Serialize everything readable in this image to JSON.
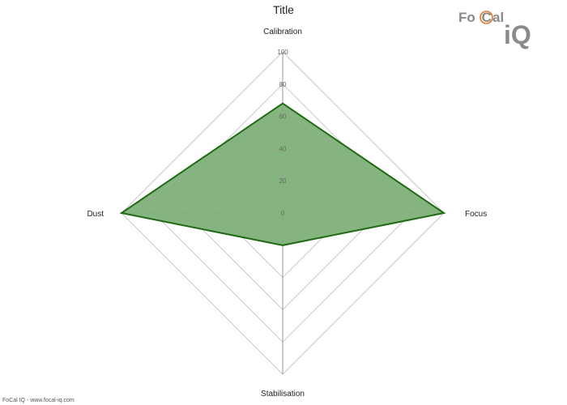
{
  "header": {
    "title": "Title"
  },
  "footer": {
    "credit": "FoCal IQ - www.focal-iq.com"
  },
  "logo": {
    "text_fo": "Fo",
    "text_c": "C",
    "text_al": "al",
    "text_iq": "iQ"
  },
  "colors": {
    "series_fill": "#7fb07a",
    "series_stroke": "#1f6b12",
    "grid": "#c8c8c8",
    "axis": "#9a9a9a",
    "logo_grey": "#8a8a8a",
    "logo_orange": "#e8742a"
  },
  "chart_data": {
    "type": "radar",
    "title": "Title",
    "axes": [
      "Calibration",
      "Focus",
      "Stabilisation",
      "Dust"
    ],
    "r_ticks": [
      0,
      20,
      40,
      60,
      80,
      100
    ],
    "r_range": [
      0,
      100
    ],
    "grid": true,
    "legend": "none",
    "series": [
      {
        "values": [
          68,
          100,
          20,
          100
        ]
      }
    ]
  }
}
